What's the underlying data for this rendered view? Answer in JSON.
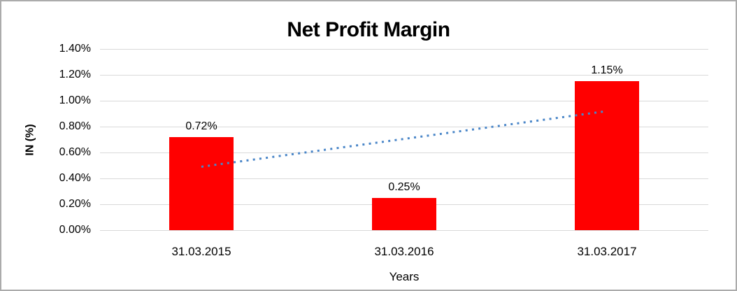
{
  "chart_data": {
    "type": "bar",
    "title": "Net Profit Margin",
    "xlabel": "Years",
    "ylabel": "IN (%)",
    "categories": [
      "31.03.2015",
      "31.03.2016",
      "31.03.2017"
    ],
    "values": [
      0.72,
      0.25,
      1.15
    ],
    "data_labels": [
      "0.72%",
      "0.25%",
      "1.15%"
    ],
    "ylim": [
      0,
      1.4
    ],
    "yticks": [
      0,
      0.2,
      0.4,
      0.6,
      0.8,
      1.0,
      1.2,
      1.4
    ],
    "ytick_labels": [
      "0.00%",
      "0.20%",
      "0.40%",
      "0.60%",
      "0.80%",
      "1.00%",
      "1.20%",
      "1.40%"
    ],
    "grid": true,
    "legend": false,
    "bar_color": "#FF0000",
    "gridline_color": "#D9D9D9",
    "frame_color": "#ABABAB",
    "trendline": {
      "type": "linear",
      "style": "dotted",
      "color": "#4A86C8",
      "start_value": 0.49,
      "end_value": 0.92
    }
  }
}
